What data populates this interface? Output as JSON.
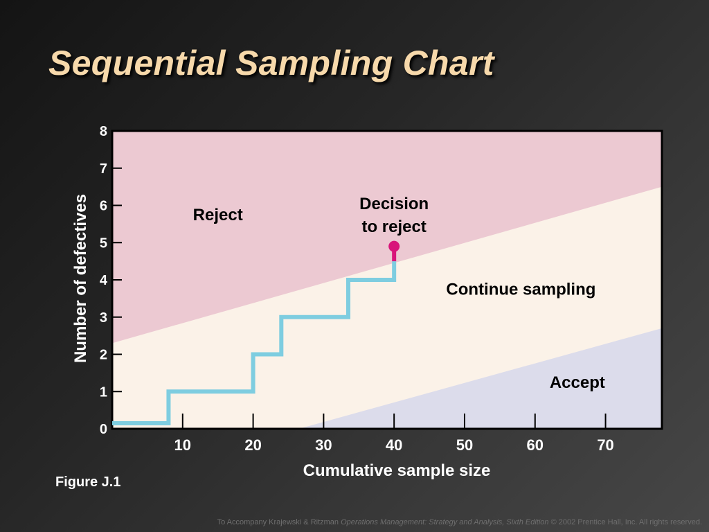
{
  "slide": {
    "title": "Sequential Sampling Chart",
    "figure_label": "Figure J.1",
    "footer": {
      "prefix": "To Accompany Krajewski & Ritzman ",
      "book": "Operations Management: Strategy and Analysis, Sixth Edition",
      "suffix": " © 2002 Prentice Hall, Inc. All rights reserved."
    }
  },
  "chart_data": {
    "type": "line",
    "title": "",
    "xlabel": "Cumulative sample size",
    "ylabel": "Number of defectives",
    "xlim": [
      0,
      78
    ],
    "ylim": [
      0,
      8
    ],
    "x_ticks": [
      10,
      20,
      30,
      40,
      50,
      60,
      70
    ],
    "y_ticks": [
      0,
      1,
      2,
      3,
      4,
      5,
      6,
      7,
      8
    ],
    "grid": false,
    "regions": [
      {
        "name": "Reject",
        "color": "#ecc9d2"
      },
      {
        "name": "Continue sampling",
        "color": "#fbf2e8"
      },
      {
        "name": "Accept",
        "color": "#dcdceb"
      }
    ],
    "reject_line": {
      "x": [
        0,
        78
      ],
      "y": [
        2.3,
        6.5
      ]
    },
    "accept_line": {
      "x": [
        26.5,
        78
      ],
      "y": [
        0,
        2.7
      ]
    },
    "series": [
      {
        "values_x": [
          0,
          8,
          8,
          20,
          20,
          24,
          24,
          33.5,
          33.5,
          40,
          40
        ],
        "values_y": [
          0.15,
          0.15,
          1,
          1,
          2,
          2,
          3,
          3,
          4,
          4,
          4.5
        ],
        "color": "#7ecde0"
      }
    ],
    "decision_point": {
      "x": 40,
      "y": 4.9,
      "color": "#d8157a"
    },
    "annotations": [
      {
        "text": "Decision\nto reject",
        "x": 40,
        "y": 5.9
      },
      {
        "text": "Reject",
        "x": 15,
        "y": 5.6
      },
      {
        "text": "Continue sampling",
        "x": 58,
        "y": 3.6
      },
      {
        "text": "Accept",
        "x": 66,
        "y": 1.1
      }
    ]
  }
}
